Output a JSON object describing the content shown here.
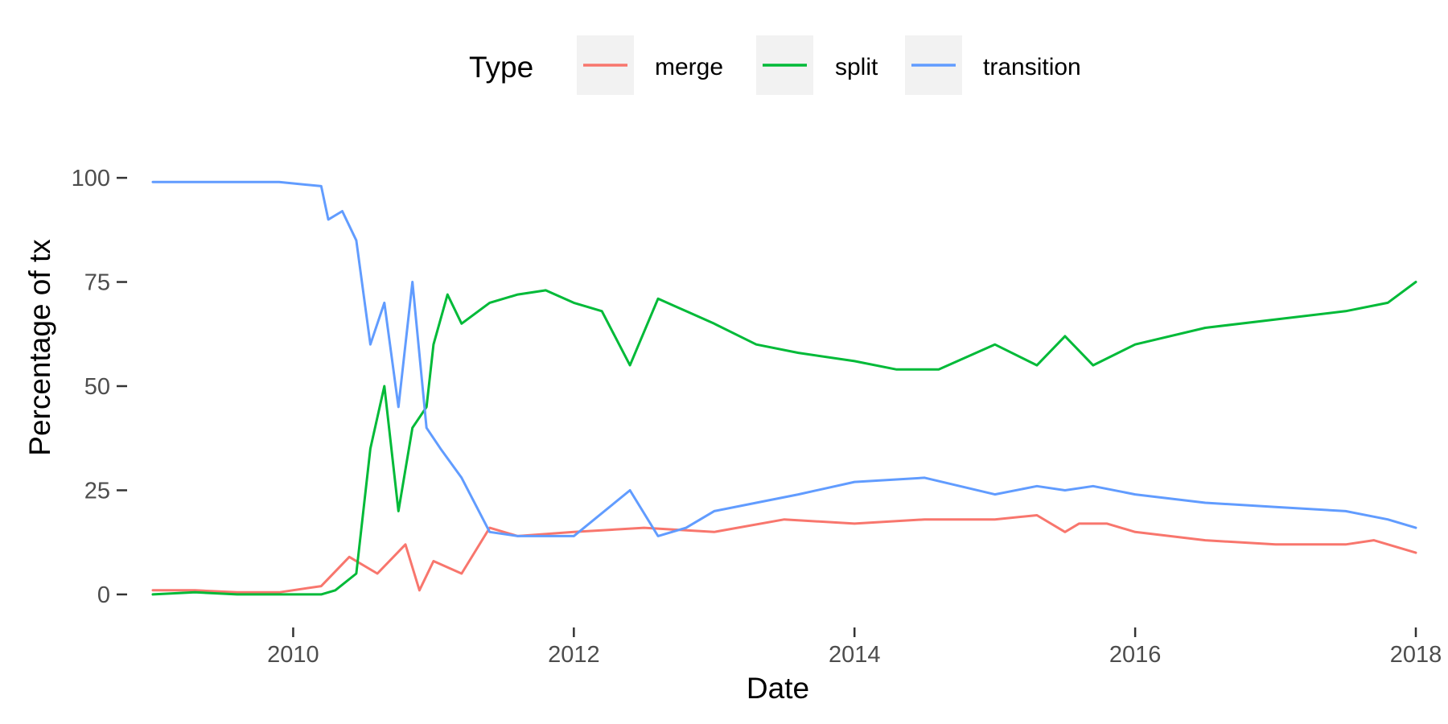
{
  "chart_data": {
    "type": "line",
    "title": "",
    "xlabel": "Date",
    "ylabel": "Percentage of tx",
    "xlim": [
      2009.0,
      2018.0
    ],
    "ylim": [
      -6,
      106
    ],
    "x_ticks": [
      2010,
      2012,
      2014,
      2016,
      2018
    ],
    "x_tick_labels": [
      "2010",
      "2012",
      "2014",
      "2016",
      "2018"
    ],
    "y_ticks": [
      0,
      25,
      50,
      75,
      100
    ],
    "y_tick_labels": [
      "0",
      "25",
      "50",
      "75",
      "100"
    ],
    "grid": false,
    "legend": {
      "title": "Type",
      "position": "top"
    },
    "series": [
      {
        "name": "merge",
        "color": "#F8766D",
        "x": [
          2009.0,
          2009.3,
          2009.6,
          2009.9,
          2010.2,
          2010.4,
          2010.6,
          2010.8,
          2010.9,
          2011.0,
          2011.2,
          2011.4,
          2011.6,
          2012.0,
          2012.5,
          2013.0,
          2013.5,
          2014.0,
          2014.5,
          2015.0,
          2015.3,
          2015.5,
          2015.6,
          2015.8,
          2016.0,
          2016.5,
          2017.0,
          2017.5,
          2017.7,
          2018.0
        ],
        "y": [
          1,
          1,
          0.5,
          0.5,
          2,
          9,
          5,
          12,
          1,
          8,
          5,
          16,
          14,
          15,
          16,
          15,
          18,
          17,
          18,
          18,
          19,
          15,
          17,
          17,
          15,
          13,
          12,
          12,
          13,
          10
        ]
      },
      {
        "name": "split",
        "color": "#00BA38",
        "x": [
          2009.0,
          2009.3,
          2009.6,
          2009.9,
          2010.2,
          2010.3,
          2010.45,
          2010.55,
          2010.65,
          2010.75,
          2010.85,
          2010.95,
          2011.0,
          2011.1,
          2011.2,
          2011.4,
          2011.6,
          2011.8,
          2012.0,
          2012.2,
          2012.4,
          2012.6,
          2012.8,
          2013.0,
          2013.3,
          2013.6,
          2014.0,
          2014.3,
          2014.6,
          2015.0,
          2015.3,
          2015.5,
          2015.7,
          2016.0,
          2016.5,
          2017.0,
          2017.5,
          2017.8,
          2018.0
        ],
        "y": [
          0,
          0.5,
          0,
          0,
          0,
          1,
          5,
          35,
          50,
          20,
          40,
          45,
          60,
          72,
          65,
          70,
          72,
          73,
          70,
          68,
          55,
          71,
          68,
          65,
          60,
          58,
          56,
          54,
          54,
          60,
          55,
          62,
          55,
          60,
          64,
          66,
          68,
          70,
          75
        ]
      },
      {
        "name": "transition",
        "color": "#619CFF",
        "x": [
          2009.0,
          2009.3,
          2009.6,
          2009.9,
          2010.2,
          2010.25,
          2010.35,
          2010.45,
          2010.55,
          2010.65,
          2010.75,
          2010.85,
          2010.95,
          2011.05,
          2011.2,
          2011.4,
          2011.6,
          2012.0,
          2012.4,
          2012.6,
          2012.8,
          2013.0,
          2013.3,
          2013.6,
          2014.0,
          2014.5,
          2015.0,
          2015.3,
          2015.5,
          2015.7,
          2016.0,
          2016.5,
          2017.0,
          2017.5,
          2017.8,
          2018.0
        ],
        "y": [
          99,
          99,
          99,
          99,
          98,
          90,
          92,
          85,
          60,
          70,
          45,
          75,
          40,
          35,
          28,
          15,
          14,
          14,
          25,
          14,
          16,
          20,
          22,
          24,
          27,
          28,
          24,
          26,
          25,
          26,
          24,
          22,
          21,
          20,
          18,
          16
        ]
      }
    ]
  }
}
